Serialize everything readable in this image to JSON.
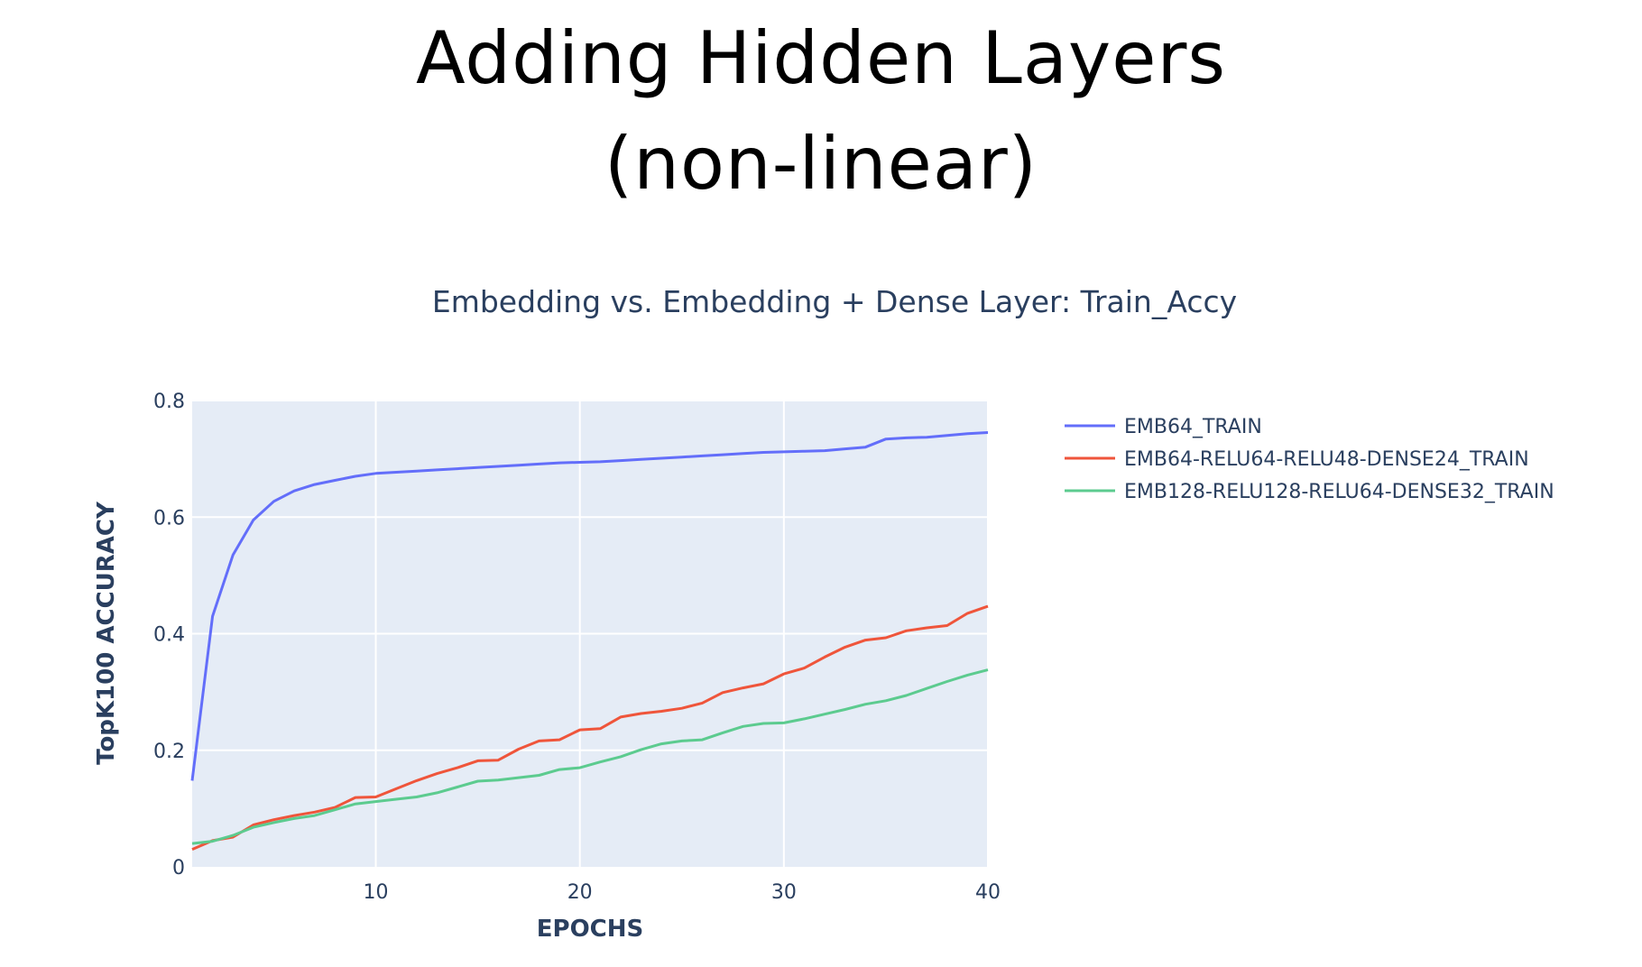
{
  "slide": {
    "title_line1": "Adding Hidden Layers",
    "title_line2": "(non-linear)"
  },
  "chart_data": {
    "type": "line",
    "title": "Embedding vs. Embedding + Dense Layer: Train_Accy",
    "xlabel": "EPOCHS",
    "ylabel": "TopK100 ACCURACY",
    "xlim": [
      1,
      40
    ],
    "ylim": [
      0,
      0.8
    ],
    "x_ticks": [
      10,
      20,
      30,
      40
    ],
    "y_ticks": [
      0,
      0.2,
      0.4,
      0.6,
      0.8
    ],
    "grid": true,
    "legend_position": "right",
    "x": [
      1,
      2,
      3,
      4,
      5,
      6,
      7,
      8,
      9,
      10,
      11,
      12,
      13,
      14,
      15,
      16,
      17,
      18,
      19,
      20,
      21,
      22,
      23,
      24,
      25,
      26,
      27,
      28,
      29,
      30,
      31,
      32,
      33,
      34,
      35,
      36,
      37,
      38,
      39,
      40
    ],
    "series": [
      {
        "name": "EMB64_TRAIN",
        "color": "#636efa",
        "values": [
          0.148,
          0.43,
          0.535,
          0.595,
          0.627,
          0.645,
          0.656,
          0.663,
          0.67,
          0.675,
          0.677,
          0.679,
          0.681,
          0.683,
          0.685,
          0.687,
          0.689,
          0.691,
          0.693,
          0.694,
          0.695,
          0.697,
          0.699,
          0.701,
          0.703,
          0.705,
          0.707,
          0.709,
          0.711,
          0.712,
          0.713,
          0.714,
          0.717,
          0.72,
          0.734,
          0.736,
          0.737,
          0.74,
          0.743,
          0.745
        ]
      },
      {
        "name": "EMB64-RELU64-RELU48-DENSE24_TRAIN",
        "color": "#ef553b",
        "values": [
          0.03,
          0.045,
          0.051,
          0.072,
          0.081,
          0.088,
          0.094,
          0.102,
          0.119,
          0.12,
          0.134,
          0.148,
          0.16,
          0.17,
          0.182,
          0.183,
          0.202,
          0.216,
          0.218,
          0.235,
          0.237,
          0.257,
          0.263,
          0.267,
          0.272,
          0.281,
          0.299,
          0.307,
          0.314,
          0.331,
          0.341,
          0.36,
          0.377,
          0.389,
          0.393,
          0.405,
          0.41,
          0.414,
          0.435,
          0.447
        ]
      },
      {
        "name": "EMB128-RELU128-RELU64-DENSE32_TRAIN",
        "color": "#5ccb8f",
        "values": [
          0.04,
          0.044,
          0.054,
          0.068,
          0.076,
          0.083,
          0.088,
          0.098,
          0.108,
          0.112,
          0.116,
          0.12,
          0.127,
          0.137,
          0.147,
          0.149,
          0.153,
          0.157,
          0.167,
          0.17,
          0.18,
          0.189,
          0.201,
          0.211,
          0.216,
          0.218,
          0.23,
          0.241,
          0.246,
          0.247,
          0.254,
          0.262,
          0.27,
          0.279,
          0.285,
          0.294,
          0.306,
          0.318,
          0.329,
          0.338
        ]
      }
    ]
  }
}
